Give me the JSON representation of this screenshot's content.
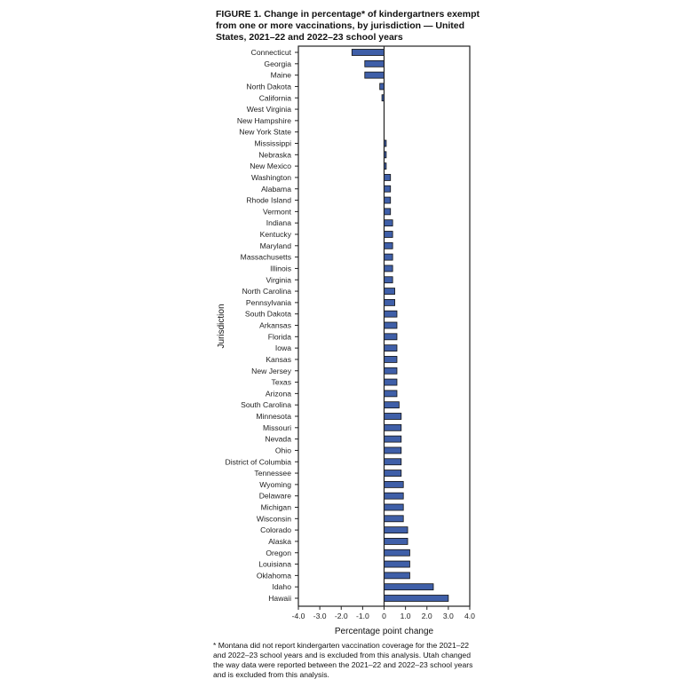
{
  "chart_data": {
    "type": "bar",
    "orientation": "horizontal",
    "title": "FIGURE 1. Change in percentage* of kindergartners exempt from one or more vaccinations, by jurisdiction — United States, 2021–22 and 2022–23 school years",
    "xlabel": "Percentage point change",
    "ylabel": "Jurisdiction",
    "xlim": [
      -4,
      4
    ],
    "xticks": [
      "-4.0",
      "-3.0",
      "-2.0",
      "-1.0",
      "0",
      "1.0",
      "2.0",
      "3.0",
      "4.0"
    ],
    "xtick_values": [
      -4,
      -3,
      -2,
      -1,
      0,
      1,
      2,
      3,
      4
    ],
    "bar_color": "#3f5fa8",
    "categories": [
      "Connecticut",
      "Georgia",
      "Maine",
      "North Dakota",
      "California",
      "West Virginia",
      "New Hampshire",
      "New York State",
      "Mississippi",
      "Nebraska",
      "New Mexico",
      "Washington",
      "Alabama",
      "Rhode Island",
      "Vermont",
      "Indiana",
      "Kentucky",
      "Maryland",
      "Massachusetts",
      "Illinois",
      "Virginia",
      "North Carolina",
      "Pennsylvania",
      "South Dakota",
      "Arkansas",
      "Florida",
      "Iowa",
      "Kansas",
      "New Jersey",
      "Texas",
      "Arizona",
      "South Carolina",
      "Minnesota",
      "Missouri",
      "Nevada",
      "Ohio",
      "District of Columbia",
      "Tennessee",
      "Wyoming",
      "Delaware",
      "Michigan",
      "Wisconsin",
      "Colorado",
      "Alaska",
      "Oregon",
      "Louisiana",
      "Oklahoma",
      "Idaho",
      "Hawaii"
    ],
    "values": [
      -1.5,
      -0.9,
      -0.9,
      -0.2,
      -0.1,
      0,
      0,
      0,
      0.1,
      0.1,
      0.1,
      0.3,
      0.3,
      0.3,
      0.3,
      0.4,
      0.4,
      0.4,
      0.4,
      0.4,
      0.4,
      0.5,
      0.5,
      0.6,
      0.6,
      0.6,
      0.6,
      0.6,
      0.6,
      0.6,
      0.6,
      0.7,
      0.8,
      0.8,
      0.8,
      0.8,
      0.8,
      0.8,
      0.9,
      0.9,
      0.9,
      0.9,
      1.1,
      1.1,
      1.2,
      1.2,
      1.2,
      2.3,
      3.0
    ]
  },
  "footnote": "* Montana did not report kindergarten vaccination coverage for the 2021–22 and 2022–23 school years and is excluded from this analysis. Utah changed the way data were reported between the 2021–22 and 2022–23 school years and is excluded from this analysis."
}
